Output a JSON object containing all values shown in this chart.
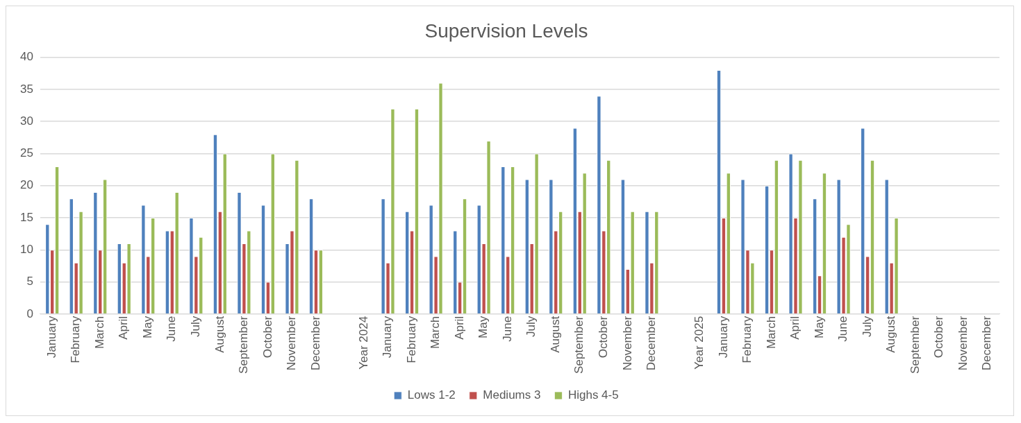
{
  "chart_data": {
    "type": "bar",
    "title": "Supervision Levels",
    "categories": [
      "January",
      "February",
      "March",
      "April",
      "May",
      "June",
      "July",
      "August",
      "September",
      "October",
      "November",
      "December",
      null,
      "Year 2024",
      "January",
      "February",
      "March",
      "April",
      "May",
      "June",
      "July",
      "August",
      "September",
      "October",
      "November",
      "December",
      null,
      "Year 2025",
      "January",
      "February",
      "March",
      "April",
      "May",
      "June",
      "July",
      "August",
      "September",
      "October",
      "November",
      "December"
    ],
    "series": [
      {
        "name": "Lows 1-2",
        "color": "#4f81bd",
        "values": [
          14,
          18,
          19,
          11,
          17,
          13,
          15,
          28,
          19,
          17,
          11,
          18,
          null,
          null,
          18,
          16,
          17,
          13,
          17,
          23,
          21,
          21,
          29,
          34,
          21,
          16,
          null,
          null,
          38,
          21,
          20,
          25,
          18,
          21,
          29,
          21,
          null,
          null,
          null,
          null
        ]
      },
      {
        "name": "Mediums 3",
        "color": "#c0504d",
        "values": [
          10,
          8,
          10,
          8,
          9,
          13,
          9,
          16,
          11,
          5,
          13,
          10,
          null,
          null,
          8,
          13,
          9,
          5,
          11,
          9,
          11,
          13,
          16,
          13,
          7,
          8,
          null,
          null,
          15,
          10,
          10,
          15,
          6,
          12,
          9,
          8,
          null,
          null,
          null,
          null
        ]
      },
      {
        "name": "Highs 4-5",
        "color": "#9bbb59",
        "values": [
          23,
          16,
          21,
          11,
          15,
          19,
          12,
          25,
          13,
          25,
          24,
          10,
          null,
          null,
          32,
          32,
          36,
          18,
          27,
          23,
          25,
          16,
          22,
          24,
          16,
          16,
          null,
          null,
          22,
          8,
          24,
          24,
          22,
          14,
          24,
          15,
          null,
          null,
          null,
          null
        ]
      }
    ],
    "ylim": [
      0,
      40
    ],
    "yticks": [
      0,
      5,
      10,
      15,
      20,
      25,
      30,
      35,
      40
    ],
    "grid": "y",
    "legend": "bottom"
  }
}
